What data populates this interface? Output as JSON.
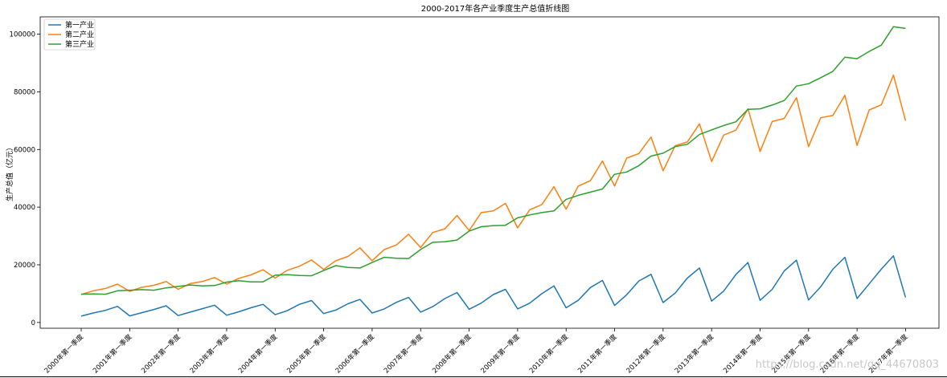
{
  "chart_data": {
    "type": "line",
    "title": "2000-2017年各产业季度生产总值折线图",
    "xlabel": "",
    "ylabel": "生产总值（亿元）",
    "ylim": [
      -2000,
      106000
    ],
    "yticks": [
      0,
      20000,
      40000,
      60000,
      80000,
      100000
    ],
    "ytick_labels": [
      "0",
      "20000",
      "40000",
      "60000",
      "80000",
      "100000"
    ],
    "xtick_labels": [
      "2000年第一季度",
      "2001年第一季度",
      "2002年第一季度",
      "2003年第一季度",
      "2004年第一季度",
      "2005年第一季度",
      "2006年第一季度",
      "2007年第一季度",
      "2008年第一季度",
      "2009年第一季度",
      "2010年第一季度",
      "2011年第一季度",
      "2012年第一季度",
      "2013年第一季度",
      "2014年第一季度",
      "2015年第一季度",
      "2016年第一季度",
      "2017年第一季度"
    ],
    "legend_position": "top-left",
    "grid": false,
    "series": [
      {
        "name": "第一产业",
        "color": "#1f77b4",
        "values": [
          2200,
          3300,
          4200,
          5600,
          2300,
          3400,
          4500,
          5800,
          2400,
          3600,
          4800,
          6000,
          2500,
          3700,
          5100,
          6300,
          2700,
          4100,
          6300,
          7600,
          3100,
          4300,
          6500,
          8000,
          3300,
          4700,
          7000,
          8700,
          3600,
          5500,
          8300,
          10400,
          4600,
          6700,
          9700,
          11500,
          4700,
          6700,
          10000,
          12700,
          5100,
          7700,
          12100,
          14600,
          5900,
          9600,
          14400,
          16700,
          6900,
          10200,
          15400,
          18900,
          7400,
          10900,
          16600,
          20800,
          7700,
          11500,
          17900,
          21600,
          7800,
          12400,
          18500,
          22600,
          8300,
          13400,
          18500,
          23100,
          8700
        ]
      },
      {
        "name": "第二产业",
        "color": "#ff7f0e",
        "values": [
          9700,
          11000,
          11800,
          13300,
          10800,
          12200,
          12900,
          14200,
          11500,
          13500,
          14200,
          15600,
          13300,
          15300,
          16500,
          18300,
          15400,
          18100,
          19500,
          21700,
          18400,
          21400,
          22900,
          25900,
          21400,
          25300,
          26900,
          30600,
          26000,
          31200,
          32500,
          37100,
          31900,
          38100,
          38700,
          41300,
          32800,
          39100,
          40900,
          47100,
          39300,
          47300,
          49200,
          56000,
          47300,
          57000,
          58600,
          64300,
          52600,
          61300,
          62600,
          68900,
          55800,
          65000,
          66700,
          74100,
          59300,
          69700,
          70800,
          78000,
          61000,
          71000,
          71800,
          78800,
          61400,
          73700,
          75500,
          85800,
          70000
        ]
      },
      {
        "name": "第三产业",
        "color": "#2ca02c",
        "values": [
          9800,
          9900,
          9800,
          11000,
          11200,
          11400,
          11200,
          12000,
          12500,
          13000,
          12700,
          12800,
          14000,
          14500,
          14100,
          14100,
          16400,
          16600,
          16300,
          16200,
          18000,
          19700,
          19100,
          18900,
          20800,
          22600,
          22300,
          22200,
          25300,
          27800,
          28000,
          28600,
          31700,
          33200,
          33600,
          33700,
          36300,
          37300,
          38100,
          38700,
          42700,
          44100,
          45200,
          46300,
          51400,
          52200,
          54400,
          57700,
          58700,
          61000,
          61800,
          65200,
          66800,
          68300,
          69600,
          73900,
          74100,
          75400,
          77000,
          82000,
          82800,
          84900,
          87100,
          92000,
          91500,
          94000,
          96200,
          102600,
          102000
        ]
      }
    ]
  },
  "watermark": "https://blog.csdn.net/qq_44670803"
}
